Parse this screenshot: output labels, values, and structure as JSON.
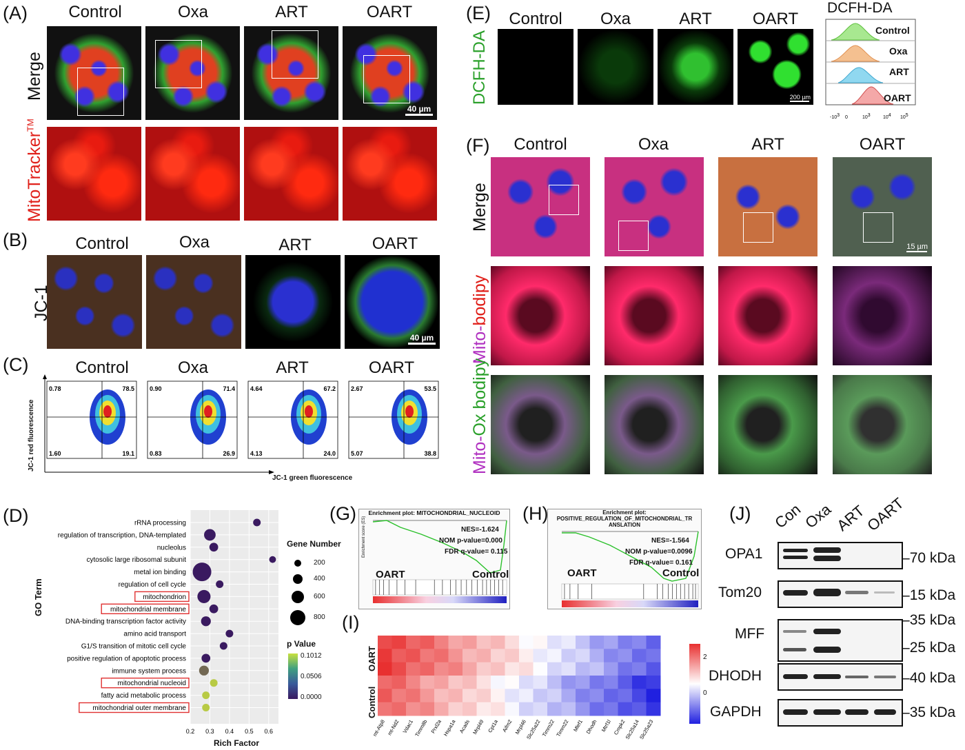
{
  "panels": {
    "A": {
      "label": "(A)",
      "columns": [
        "Control",
        "Oxa",
        "ART",
        "OART"
      ],
      "row1": "Merge",
      "row2": "MitoTracker",
      "row2_sup": "TM",
      "scale": "40 µm"
    },
    "B": {
      "label": "(B)",
      "columns": [
        "Control",
        "Oxa",
        "ART",
        "OART"
      ],
      "row": "JC-1",
      "scale": "40 µm"
    },
    "C": {
      "label": "(C)",
      "columns": [
        "Control",
        "Oxa",
        "ART",
        "OART"
      ],
      "ylabel": "JC-1 red fluorescence",
      "xlabel": "JC-1 green fluorescence",
      "quadrants": [
        {
          "ul": "0.78",
          "ur": "78.5",
          "ll": "1.60",
          "lr": "19.1"
        },
        {
          "ul": "0.90",
          "ur": "71.4",
          "ll": "0.83",
          "lr": "26.9"
        },
        {
          "ul": "4.64",
          "ur": "67.2",
          "ll": "4.13",
          "lr": "24.0"
        },
        {
          "ul": "2.67",
          "ur": "53.5",
          "ll": "5.07",
          "lr": "38.8"
        }
      ]
    },
    "E": {
      "label": "(E)",
      "columns": [
        "Control",
        "Oxa",
        "ART",
        "OART"
      ],
      "row": "DCFH-DA",
      "scale": "200 µm",
      "hist_title": "DCFH-DA",
      "hist_rows": [
        "Control",
        "Oxa",
        "ART",
        "OART"
      ]
    },
    "F": {
      "label": "(F)",
      "columns": [
        "Control",
        "Oxa",
        "ART",
        "OART"
      ],
      "row1": "Merge",
      "row2_a": "Mito-",
      "row2_b": "bodipy",
      "row3_a": "Mito-",
      "row3_b": "Ox bodipy",
      "scale": "15 µm"
    },
    "D": {
      "label": "(D)",
      "xlabel": "Rich Factor",
      "ylabel": "GO Term",
      "size_title": "Gene Number",
      "color_title": "p Value",
      "size_legend": [
        "200",
        "400",
        "600",
        "800"
      ],
      "color_legend": [
        "0.1012",
        "0.0506",
        "0.0000"
      ]
    },
    "G": {
      "label": "(G)",
      "title": "Enrichment plot: MITOCHONDRIAL_NUCLEOID",
      "nes": "NES=-1.624",
      "nom": "NOM p-value=0.000",
      "fdr": "FDR q-value= 0.115",
      "left": "OART",
      "right": "Control",
      "ylabel": "Enrichment score (ES)"
    },
    "H": {
      "label": "(H)",
      "title1": "Enrichment plot:",
      "title2": "POSITIVE_REGULATION_OF_MITOCHONDRIAL_TR",
      "title3": "ANSLATION",
      "nes": "NES=-1.564",
      "nom": "NOM p-value=0.0096",
      "fdr": "FDR q-value= 0.161",
      "left": "OART",
      "right": "Control",
      "ylabel": "Enrichment score (ES)"
    },
    "I": {
      "label": "(I)",
      "rows": [
        "OART",
        "Control"
      ],
      "scale": [
        "2",
        "0"
      ]
    },
    "J": {
      "label": "(J)",
      "lanes": [
        "Con",
        "Oxa",
        "ART",
        "OART"
      ],
      "proteins": [
        "OPA1",
        "Tom20",
        "MFF",
        "DHODH",
        "GAPDH"
      ],
      "markers": [
        "70 kDa",
        "15 kDa",
        "35 kDa",
        "25 kDa",
        "40 kDa",
        "35 kDa"
      ]
    }
  },
  "chart_data": [
    {
      "type": "scatter",
      "title": "",
      "xlabel": "Rich Factor",
      "ylabel": "GO Term",
      "xlim": [
        0.2,
        0.65
      ],
      "xticks": [
        "0.2",
        "0.3",
        "0.4",
        "0.5",
        "0.6"
      ],
      "categories": [
        "rRNA processing",
        "regulation of transcription, DNA-templated",
        "nucleolus",
        "cytosolic large ribosomal subunit",
        "metal ion binding",
        "regulation of cell cycle",
        "mitochondrion",
        "mitochondrial membrane",
        "DNA-binding transcription factor activity",
        "amino acid transport",
        "G1/S transition of mitotic cell cycle",
        "positive regulation of apoptotic process",
        "immune system process",
        "mitochondrial nucleoid",
        "fatty acid metabolic process",
        "mitochondrial outer membrane"
      ],
      "highlighted": [
        "mitochondrion",
        "mitochondrial membrane",
        "mitochondrial nucleoid",
        "mitochondrial outer membrane"
      ],
      "rich_factor": [
        0.54,
        0.3,
        0.32,
        0.62,
        0.26,
        0.35,
        0.27,
        0.32,
        0.28,
        0.4,
        0.37,
        0.28,
        0.27,
        0.32,
        0.28,
        0.28
      ],
      "gene_number": [
        150,
        350,
        200,
        120,
        900,
        150,
        450,
        200,
        250,
        150,
        150,
        200,
        250,
        150,
        150,
        150
      ],
      "p_value": [
        0.0,
        0.0,
        0.0,
        0.0,
        0.0,
        0.0,
        0.0,
        0.0,
        0.0,
        0.0,
        0.0,
        0.0,
        0.04,
        0.09,
        0.09,
        0.09
      ]
    },
    {
      "type": "heatmap",
      "rows": [
        "OART",
        "OART",
        "OART",
        "Control",
        "Control",
        "Control"
      ],
      "columns": [
        "mt-Atp8",
        "mt-Nd2",
        "Vdac1",
        "Timm8b",
        "Prxl2a",
        "Hspa1a",
        "Acads",
        "Mrpl49",
        "Cpt1a",
        "Aifm2",
        "Mrpl46",
        "Slc25a22",
        "Timm22",
        "Timm22",
        "Mlef1",
        "Dhodh",
        "Mtrf1l",
        "Cmpk2",
        "Slc25a14",
        "Slc25a23"
      ],
      "colorbar": [
        "2",
        "0"
      ]
    }
  ]
}
